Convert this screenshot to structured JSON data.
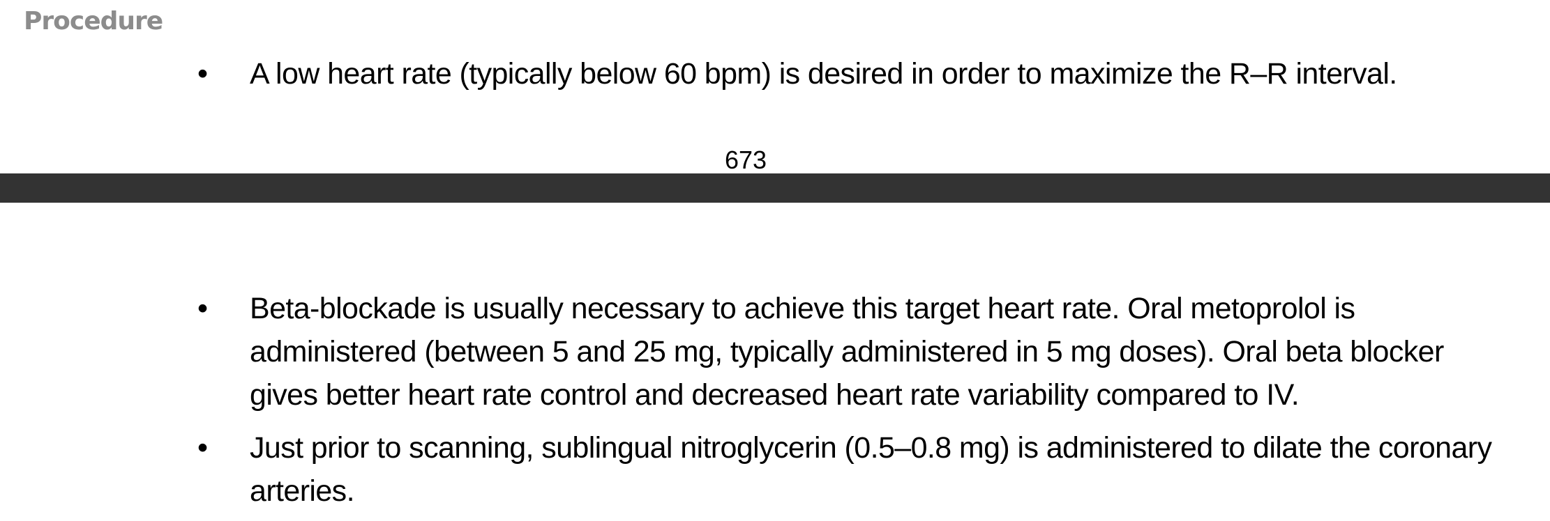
{
  "heading": "Procedure",
  "top_bullets": [
    {
      "text": "A low heart rate (typically below 60 bpm) is desired in order to maximize the R–R interval."
    }
  ],
  "page_number": "673",
  "divider_color": "#333333",
  "bottom_bullets": [
    {
      "text": "Beta-blockade is usually necessary to achieve this target heart rate. Oral metoprolol is administered (between 5 and 25 mg, typically administered in 5 mg doses). Oral beta blocker gives better heart rate control and decreased heart rate variability compared to IV."
    },
    {
      "text": "Just prior to scanning, sublingual nitroglycerin (0.5–0.8 mg) is administered to dilate the coronary arteries."
    }
  ]
}
